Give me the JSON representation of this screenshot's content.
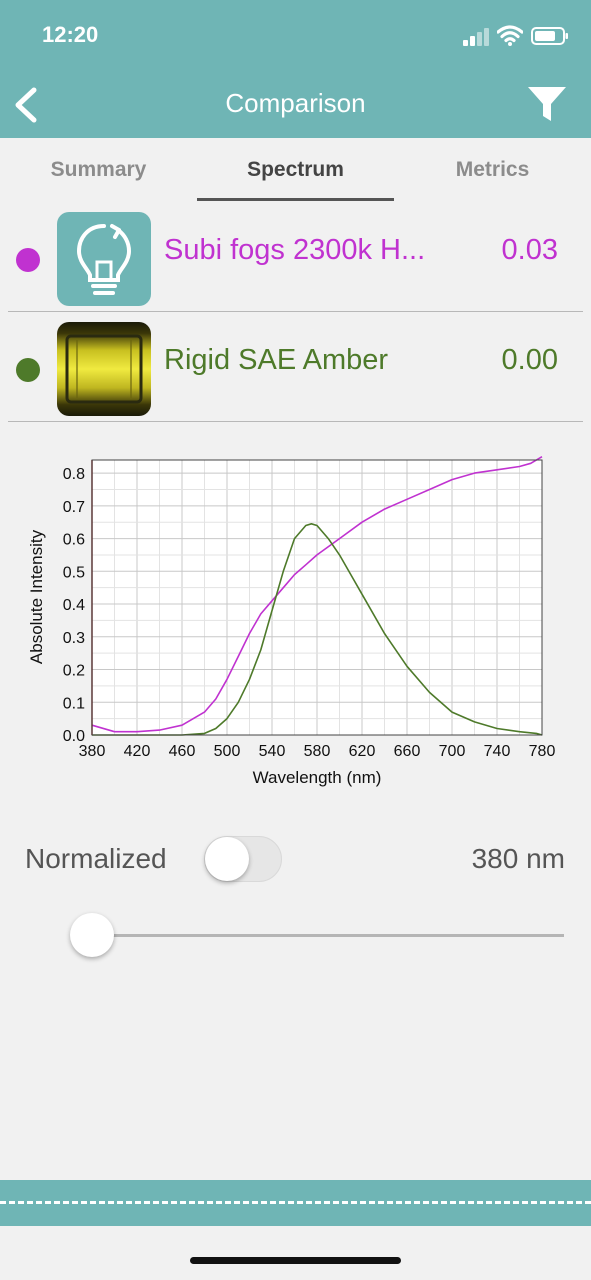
{
  "status_bar": {
    "time": "12:20"
  },
  "header": {
    "title": "Comparison"
  },
  "tabs": [
    {
      "label": "Summary"
    },
    {
      "label": "Spectrum"
    },
    {
      "label": "Metrics"
    }
  ],
  "items": [
    {
      "name": "Subi fogs 2300k H...",
      "value": "0.03",
      "color": "#c032d0"
    },
    {
      "name": "Rigid SAE Amber",
      "value": "0.00",
      "color": "#4e7a2a"
    }
  ],
  "chart_data": {
    "type": "line",
    "xlabel": "Wavelength (nm)",
    "ylabel": "Absolute Intensity",
    "xlim": [
      380,
      780
    ],
    "ylim": [
      0,
      0.84
    ],
    "xticks": [
      380,
      420,
      460,
      500,
      540,
      580,
      620,
      660,
      700,
      740,
      780
    ],
    "yticks": [
      "0.0",
      "0.1",
      "0.2",
      "0.3",
      "0.4",
      "0.5",
      "0.6",
      "0.7",
      "0.8"
    ],
    "grid": true,
    "series": [
      {
        "name": "Subi fogs 2300k H...",
        "color": "#c032d0",
        "x": [
          380,
          400,
          420,
          440,
          460,
          480,
          490,
          500,
          510,
          520,
          530,
          540,
          550,
          560,
          570,
          580,
          600,
          620,
          640,
          660,
          680,
          700,
          720,
          740,
          760,
          770,
          780
        ],
        "y": [
          0.03,
          0.01,
          0.01,
          0.015,
          0.03,
          0.07,
          0.11,
          0.17,
          0.24,
          0.31,
          0.37,
          0.41,
          0.45,
          0.49,
          0.52,
          0.55,
          0.6,
          0.65,
          0.69,
          0.72,
          0.75,
          0.78,
          0.8,
          0.81,
          0.82,
          0.83,
          0.85
        ]
      },
      {
        "name": "Rigid SAE Amber",
        "color": "#4e7a2a",
        "x": [
          380,
          460,
          480,
          490,
          500,
          510,
          520,
          530,
          540,
          550,
          560,
          570,
          575,
          580,
          590,
          600,
          610,
          620,
          640,
          660,
          680,
          700,
          720,
          740,
          760,
          775,
          780
        ],
        "y": [
          0,
          0,
          0.005,
          0.02,
          0.05,
          0.1,
          0.17,
          0.26,
          0.38,
          0.5,
          0.6,
          0.64,
          0.645,
          0.64,
          0.6,
          0.55,
          0.49,
          0.43,
          0.31,
          0.21,
          0.13,
          0.07,
          0.04,
          0.02,
          0.01,
          0.005,
          0
        ]
      }
    ]
  },
  "controls": {
    "normalized_label": "Normalized",
    "normalized_on": false,
    "wavelength_readout": "380 nm",
    "wavelength_value": 380
  }
}
